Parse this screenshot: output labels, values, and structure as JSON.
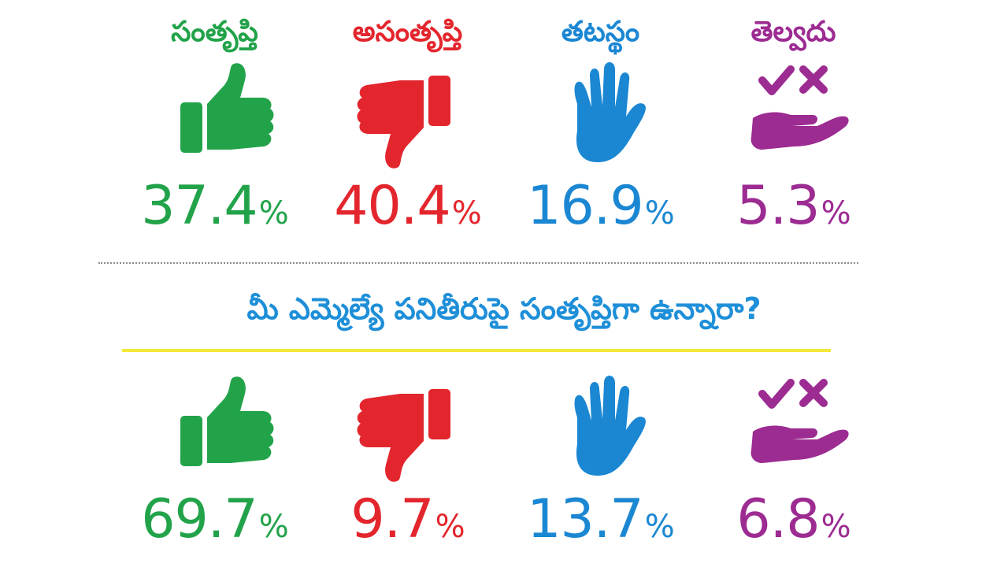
{
  "colors": {
    "satisfied": "#22a34a",
    "dissatisfied": "#e3262d",
    "neutral": "#1b87d3",
    "dont_know": "#9c2b92",
    "question": "#1e8fd8",
    "rule": "#f3e93a"
  },
  "categories": [
    {
      "key": "satisfied",
      "label": "సంతృప్తి",
      "icon": "thumbs-up-icon"
    },
    {
      "key": "dissatisfied",
      "label": "అసంతృప్తి",
      "icon": "thumbs-down-icon"
    },
    {
      "key": "neutral",
      "label": "తటస్థం",
      "icon": "open-hand-icon"
    },
    {
      "key": "dont_know",
      "label": "తెల్వదు",
      "icon": "check-cross-hand-icon"
    }
  ],
  "section1": {
    "values": [
      "37.4",
      "40.4",
      "16.9",
      "5.3"
    ]
  },
  "question": "మీ ఎమ్మెల్యే పనితీరుపై సంతృప్తిగా ఉన్నారా?",
  "section2": {
    "values": [
      "69.7",
      "9.7",
      "13.7",
      "6.8"
    ]
  },
  "percent_sign": "%"
}
